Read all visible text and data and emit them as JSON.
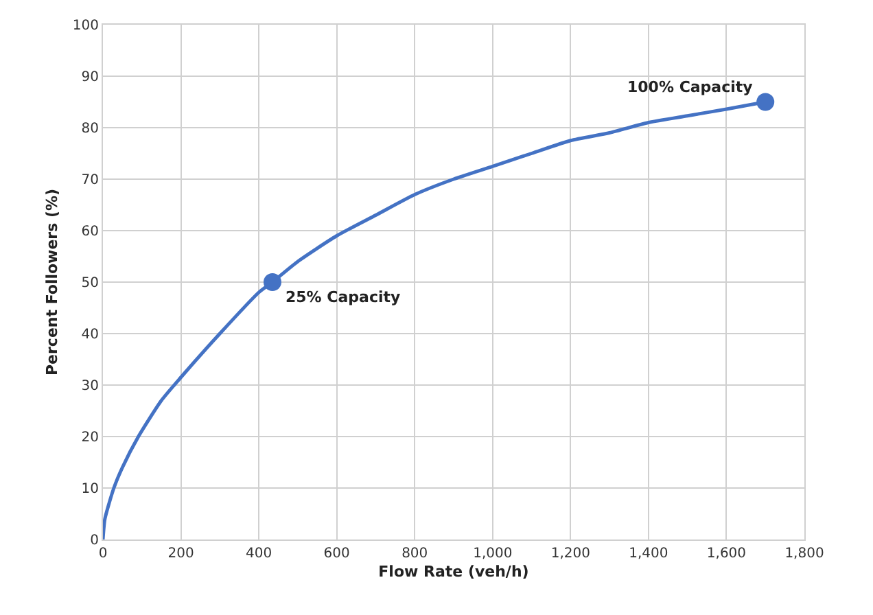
{
  "chart_data": {
    "type": "line",
    "xlabel": "Flow Rate (veh/h)",
    "ylabel": "Percent Followers (%)",
    "xlim": [
      0,
      1800
    ],
    "xticks": [
      0,
      200,
      400,
      600,
      800,
      {
        "value": 1000,
        "label": "1,000"
      },
      {
        "value": 1200,
        "label": "1,200"
      },
      {
        "value": 1400,
        "label": "1,400"
      },
      {
        "value": 1600,
        "label": "1,600"
      },
      {
        "value": 1800,
        "label": "1,800"
      }
    ],
    "ylim": [
      0,
      100
    ],
    "yticks": [
      0,
      10,
      20,
      30,
      40,
      50,
      60,
      70,
      80,
      90,
      100
    ],
    "grid": true,
    "series": [
      {
        "color": "#4472c4",
        "marker": "none",
        "line_style": "solid",
        "x": [
          0,
          5,
          28,
          50,
          91,
          150,
          200,
          300,
          400,
          435,
          500,
          600,
          700,
          800,
          900,
          1000,
          1100,
          1200,
          1300,
          1400,
          1500,
          1600,
          1700
        ],
        "values": [
          0,
          4,
          10,
          14,
          20,
          27,
          31.5,
          40,
          48,
          50,
          54,
          59,
          63,
          67,
          70,
          72.5,
          75,
          77.5,
          79,
          81,
          82.3,
          83.6,
          85
        ]
      },
      {
        "type": "scatter",
        "color": "#4472c4",
        "marker": "circle",
        "x": [
          435,
          1700
        ],
        "values": [
          50,
          85
        ]
      }
    ],
    "annotations": [
      {
        "text": "25% Capacity",
        "x": 435,
        "y": 50
      },
      {
        "text": "100% Capacity",
        "x": 1700,
        "y": 85
      }
    ]
  }
}
